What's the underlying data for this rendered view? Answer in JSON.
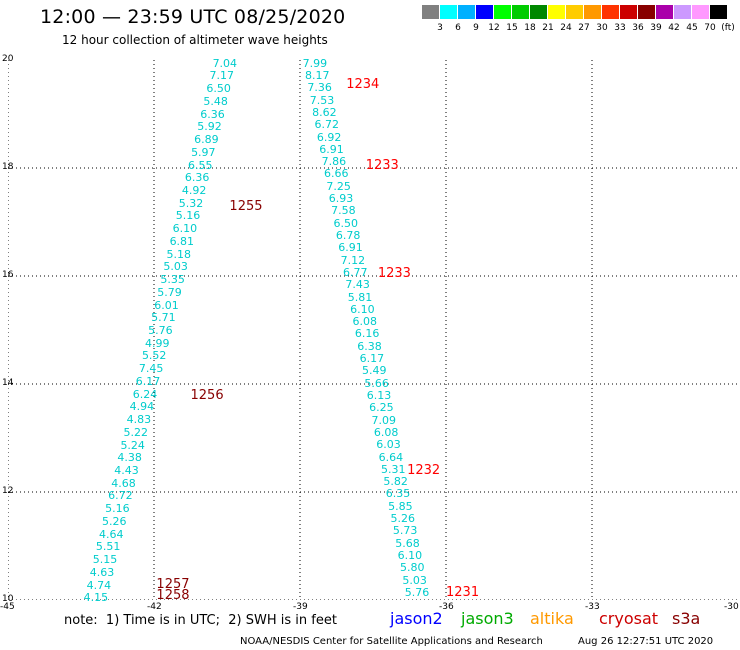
{
  "header": {
    "title": "12:00 — 23:59 UTC 08/25/2020",
    "subtitle": "12 hour collection of altimeter wave heights"
  },
  "color_scale": {
    "labels": [
      "3",
      "6",
      "9",
      "12",
      "15",
      "18",
      "21",
      "24",
      "27",
      "30",
      "33",
      "36",
      "39",
      "42",
      "45",
      "70"
    ],
    "unit": "(ft)",
    "colors": [
      "#808080",
      "#00ffff",
      "#00b0ff",
      "#0000ff",
      "#00ff00",
      "#00cc00",
      "#008800",
      "#ffff00",
      "#ffcc00",
      "#ff9900",
      "#ff3300",
      "#cc0000",
      "#880000",
      "#aa00aa",
      "#cc99ff",
      "#ff99ff",
      "#000000"
    ]
  },
  "axes": {
    "x_ticks": [
      "-45",
      "-42",
      "-39",
      "-36",
      "-33",
      "-30"
    ],
    "y_ticks": [
      "10",
      "12",
      "14",
      "16",
      "18",
      "20"
    ],
    "x_range": [
      -45,
      -30
    ],
    "y_range": [
      10,
      20
    ]
  },
  "pass_labels": [
    {
      "text": "1234",
      "lon": -38.05,
      "lat": 19.55,
      "color": "#ff0000"
    },
    {
      "text": "1233",
      "lon": -37.65,
      "lat": 18.05,
      "color": "#ff0000"
    },
    {
      "text": "1255",
      "lon": -40.45,
      "lat": 17.3,
      "color": "#880000"
    },
    {
      "text": "1233",
      "lon": -37.4,
      "lat": 16.05,
      "color": "#ff0000"
    },
    {
      "text": "1256",
      "lon": -41.25,
      "lat": 13.8,
      "color": "#880000"
    },
    {
      "text": "1232",
      "lon": -36.8,
      "lat": 12.4,
      "color": "#ff0000"
    },
    {
      "text": "1257",
      "lon": -41.95,
      "lat": 10.3,
      "color": "#880000"
    },
    {
      "text": "1258",
      "lon": -41.95,
      "lat": 10.1,
      "color": "#880000"
    },
    {
      "text": "1231",
      "lon": -36.0,
      "lat": 10.15,
      "color": "#ff0000"
    }
  ],
  "tracks": [
    {
      "pass": "1255-1258",
      "top_lon": -40.55,
      "top_lat": 19.95,
      "bottom_lon": -43.2,
      "bottom_lat": 10.05,
      "values": [
        "7.04",
        "7.17",
        "6.50",
        "5.48",
        "6.36",
        "5.92",
        "6.89",
        "5.97",
        "6.55",
        "6.36",
        "4.92",
        "5.32",
        "5.16",
        "6.10",
        "6.81",
        "5.18",
        "5.03",
        "5.35",
        "5.79",
        "6.01",
        "5.71",
        "5.76",
        "4.99",
        "5.52",
        "7.45",
        "6.17",
        "6.24",
        "4.94",
        "4.83",
        "5.22",
        "5.24",
        "4.38",
        "4.43",
        "4.68",
        "6.72",
        "5.16",
        "5.26",
        "4.64",
        "5.51",
        "5.15",
        "4.63",
        "4.74",
        "4.15"
      ]
    },
    {
      "pass": "1231-1234",
      "top_lon": -38.7,
      "top_lat": 19.95,
      "bottom_lon": -36.6,
      "bottom_lat": 10.15,
      "values": [
        "7.99",
        "8.17",
        "7.36",
        "7.53",
        "8.62",
        "6.72",
        "6.92",
        "6.91",
        "7.86",
        "6.66",
        "7.25",
        "6.93",
        "7.58",
        "6.50",
        "6.78",
        "6.91",
        "7.12",
        "6.77",
        "7.43",
        "5.81",
        "6.10",
        "6.08",
        "6.16",
        "6.38",
        "6.17",
        "5.49",
        "5.66",
        "6.13",
        "6.25",
        "7.09",
        "6.08",
        "6.03",
        "6.64",
        "5.31",
        "5.82",
        "6.35",
        "5.85",
        "5.26",
        "5.73",
        "5.68",
        "6.10",
        "5.80",
        "5.03",
        "5.76"
      ]
    }
  ],
  "footer": {
    "note": "note:  1) Time is in UTC;  2) SWH is in feet",
    "legend": [
      {
        "name": "jason2",
        "color": "#0000ff"
      },
      {
        "name": "jason3",
        "color": "#00aa00"
      },
      {
        "name": "altika",
        "color": "#ff9900"
      },
      {
        "name": "cryosat",
        "color": "#cc0000"
      },
      {
        "name": "s3a",
        "color": "#880000"
      }
    ],
    "credit": "NOAA/NESDIS Center for Satellite Applications and Research",
    "timestamp": "Aug 26 12:27:51 UTC 2020"
  }
}
